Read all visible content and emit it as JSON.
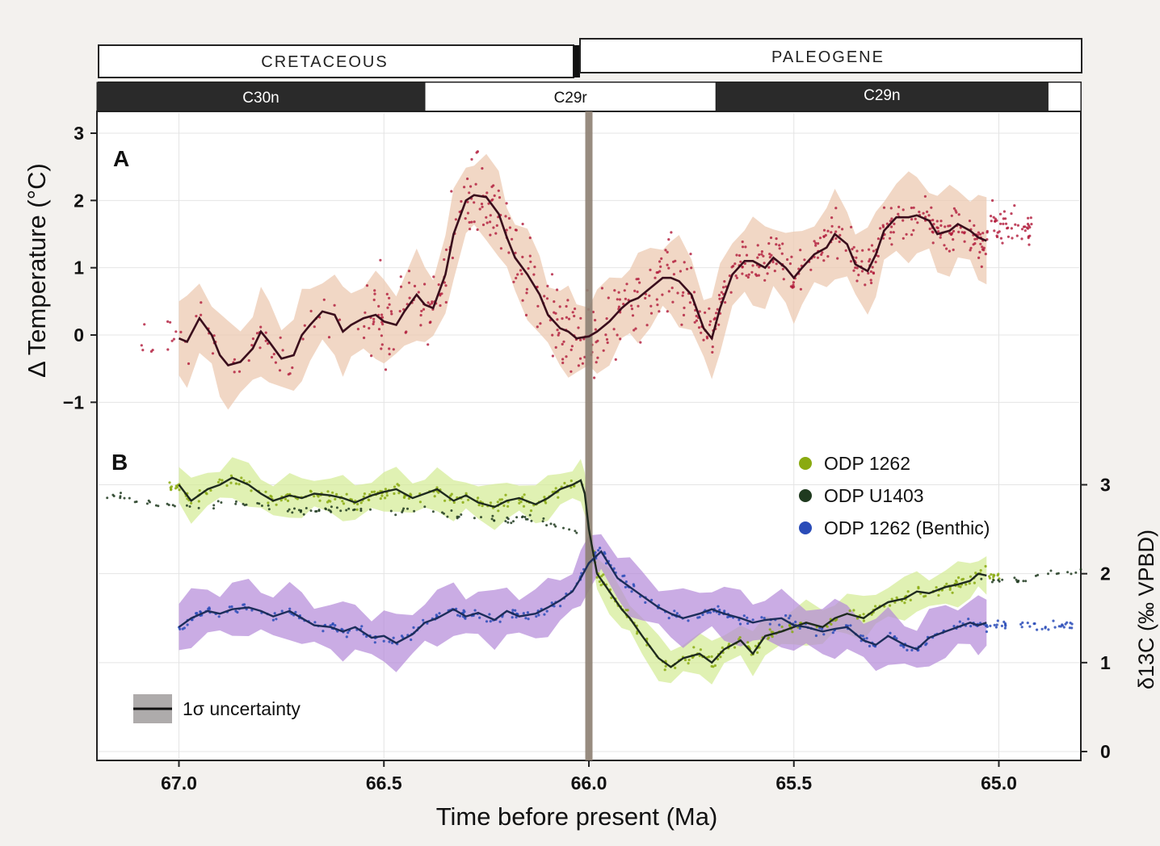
{
  "periods": [
    {
      "name": "CRETACEOUS",
      "from": 67.2,
      "to": 66.0
    },
    {
      "name": "PALEOGENE",
      "from": 66.0,
      "to": 64.8
    }
  ],
  "chrons": [
    {
      "name": "C30n",
      "from": 67.2,
      "to": 66.4,
      "polarity": "normal"
    },
    {
      "name": "C29r",
      "from": 66.4,
      "to": 65.69,
      "polarity": "reversed"
    },
    {
      "name": "C29n",
      "from": 65.69,
      "to": 64.88,
      "polarity": "normal"
    },
    {
      "name": "",
      "from": 64.88,
      "to": 64.8,
      "polarity": "reversed"
    }
  ],
  "colors": {
    "temp_line": "#3a0d1c",
    "temp_points": "#b01838",
    "temp_band": "#ecc9b2",
    "green_points": "#8aaa10",
    "green_band": "#d6ec9a",
    "dark_points": "#1f3a1f",
    "line_dark": "#1e2a1e",
    "benthic_points": "#2a4cb8",
    "benthic_band": "#b489d8",
    "benthic_line": "#1c2d5a",
    "boundary": "#8d7f72"
  },
  "legend": {
    "odp1262": "ODP 1262",
    "u1403": "ODP U1403",
    "benthic": "ODP 1262 (Benthic)",
    "uncertainty": "1σ uncertainty"
  },
  "chart_data": {
    "type": "line",
    "title": "",
    "xlabel": "Time before present (Ma)",
    "xlim": [
      67.2,
      64.8
    ],
    "xticks": [
      67.0,
      66.5,
      66.0,
      65.5,
      65.0
    ],
    "xtick_labels": [
      "67.0",
      "66.5",
      "66.0",
      "65.5",
      "65.0"
    ],
    "boundary_age": 66.0,
    "panels": [
      {
        "label": "A",
        "ylabel": "Δ Temperature (°C)",
        "ylim": [
          -1.5,
          3.0
        ],
        "yticks": [
          -1,
          0,
          1,
          2,
          3
        ],
        "ytick_labels": [
          "−1",
          "0",
          "1",
          "2",
          "3"
        ],
        "series": [
          {
            "name": "Δ Temperature",
            "band_halfwidth": 0.55,
            "x": [
              67.0,
              66.98,
              66.95,
              66.92,
              66.9,
              66.88,
              66.85,
              66.82,
              66.8,
              66.78,
              66.75,
              66.72,
              66.7,
              66.68,
              66.65,
              66.62,
              66.6,
              66.58,
              66.55,
              66.52,
              66.5,
              66.47,
              66.45,
              66.42,
              66.4,
              66.38,
              66.35,
              66.33,
              66.3,
              66.28,
              66.25,
              66.22,
              66.2,
              66.18,
              66.15,
              66.12,
              66.1,
              66.07,
              66.05,
              66.03,
              66.0,
              65.98,
              65.95,
              65.92,
              65.9,
              65.88,
              65.85,
              65.82,
              65.8,
              65.78,
              65.75,
              65.72,
              65.7,
              65.68,
              65.65,
              65.62,
              65.6,
              65.57,
              65.55,
              65.52,
              65.5,
              65.48,
              65.45,
              65.42,
              65.4,
              65.37,
              65.35,
              65.32,
              65.3,
              65.28,
              65.25,
              65.22,
              65.2,
              65.17,
              65.15,
              65.12,
              65.1,
              65.07,
              65.05,
              65.03
            ],
            "y": [
              -0.05,
              -0.1,
              0.25,
              0.0,
              -0.3,
              -0.45,
              -0.4,
              -0.2,
              0.05,
              -0.1,
              -0.35,
              -0.3,
              0.0,
              0.15,
              0.35,
              0.3,
              0.05,
              0.15,
              0.25,
              0.3,
              0.2,
              0.15,
              0.35,
              0.6,
              0.45,
              0.4,
              0.9,
              1.5,
              2.0,
              2.08,
              2.05,
              1.8,
              1.45,
              1.15,
              0.9,
              0.6,
              0.3,
              0.1,
              0.05,
              -0.05,
              -0.02,
              0.05,
              0.2,
              0.4,
              0.5,
              0.55,
              0.7,
              0.85,
              0.85,
              0.8,
              0.6,
              0.1,
              -0.05,
              0.4,
              0.9,
              1.1,
              1.1,
              1.0,
              1.15,
              1.0,
              0.85,
              1.0,
              1.2,
              1.3,
              1.5,
              1.35,
              1.05,
              0.95,
              1.2,
              1.55,
              1.75,
              1.75,
              1.78,
              1.7,
              1.5,
              1.55,
              1.65,
              1.55,
              1.45,
              1.4
            ]
          }
        ]
      },
      {
        "label": "B",
        "ylabel": "δ13C (‰ VPBD)",
        "ylim": [
          0,
          3.05
        ],
        "yticks": [
          0,
          1,
          2,
          3
        ],
        "ytick_labels": [
          "0",
          "1",
          "2",
          "3"
        ],
        "series": [
          {
            "name": "ODP 1262",
            "band_halfwidth": 0.2,
            "x": [
              67.0,
              66.97,
              66.93,
              66.9,
              66.87,
              66.83,
              66.8,
              66.77,
              66.73,
              66.7,
              66.67,
              66.63,
              66.6,
              66.57,
              66.53,
              66.5,
              66.47,
              66.43,
              66.4,
              66.37,
              66.33,
              66.3,
              66.27,
              66.23,
              66.2,
              66.17,
              66.13,
              66.1,
              66.07,
              66.04,
              66.02,
              66.01,
              66.0,
              65.98,
              65.95,
              65.92,
              65.9,
              65.87,
              65.83,
              65.8,
              65.77,
              65.73,
              65.7,
              65.67,
              65.63,
              65.6,
              65.57,
              65.53,
              65.5,
              65.47,
              65.43,
              65.4,
              65.37,
              65.33,
              65.3,
              65.27,
              65.23,
              65.2,
              65.17,
              65.13,
              65.1,
              65.07,
              65.05,
              65.03
            ],
            "y": [
              3.0,
              2.82,
              2.95,
              3.0,
              3.08,
              3.0,
              2.9,
              2.82,
              2.88,
              2.85,
              2.9,
              2.88,
              2.85,
              2.8,
              2.88,
              2.92,
              2.95,
              2.85,
              2.9,
              2.95,
              2.82,
              2.88,
              2.8,
              2.75,
              2.82,
              2.85,
              2.78,
              2.85,
              2.95,
              3.0,
              3.05,
              2.9,
              2.5,
              2.0,
              1.8,
              1.6,
              1.5,
              1.3,
              1.05,
              0.95,
              1.05,
              1.1,
              1.0,
              1.15,
              1.25,
              1.1,
              1.3,
              1.35,
              1.4,
              1.45,
              1.4,
              1.5,
              1.55,
              1.5,
              1.6,
              1.68,
              1.72,
              1.8,
              1.78,
              1.85,
              1.88,
              1.92,
              2.0,
              1.98
            ]
          },
          {
            "name": "ODP U1403",
            "x": [
              67.2,
              67.15,
              67.1,
              67.05,
              67.0,
              66.95,
              66.9,
              66.85,
              66.8,
              66.75,
              66.7,
              66.65,
              66.6,
              66.55,
              66.5,
              66.45,
              66.4,
              66.35,
              66.3,
              66.25,
              66.2,
              66.15,
              66.1,
              66.05,
              66.02,
              65.02,
              64.98,
              64.94,
              64.9,
              64.86,
              64.82
            ],
            "y": [
              2.9,
              2.87,
              2.8,
              2.78,
              2.77,
              2.75,
              2.78,
              2.8,
              2.76,
              2.72,
              2.7,
              2.72,
              2.74,
              2.7,
              2.68,
              2.7,
              2.72,
              2.68,
              2.64,
              2.62,
              2.6,
              2.62,
              2.55,
              2.5,
              2.45,
              1.92,
              1.95,
              1.92,
              1.98,
              2.0,
              2.02
            ]
          },
          {
            "name": "ODP 1262 (Benthic)",
            "band_halfwidth": 0.26,
            "x": [
              67.0,
              66.97,
              66.93,
              66.9,
              66.87,
              66.83,
              66.8,
              66.77,
              66.73,
              66.7,
              66.67,
              66.63,
              66.6,
              66.57,
              66.53,
              66.5,
              66.47,
              66.43,
              66.4,
              66.37,
              66.33,
              66.3,
              66.27,
              66.23,
              66.2,
              66.17,
              66.13,
              66.1,
              66.07,
              66.04,
              66.02,
              66.0,
              65.97,
              65.93,
              65.9,
              65.87,
              65.83,
              65.8,
              65.77,
              65.73,
              65.7,
              65.67,
              65.63,
              65.6,
              65.57,
              65.53,
              65.5,
              65.47,
              65.43,
              65.4,
              65.37,
              65.33,
              65.3,
              65.27,
              65.23,
              65.2,
              65.17,
              65.13,
              65.1,
              65.07,
              65.05,
              65.03
            ],
            "y": [
              1.4,
              1.5,
              1.58,
              1.55,
              1.6,
              1.62,
              1.58,
              1.52,
              1.58,
              1.5,
              1.42,
              1.4,
              1.35,
              1.4,
              1.28,
              1.3,
              1.22,
              1.32,
              1.45,
              1.5,
              1.6,
              1.52,
              1.56,
              1.48,
              1.58,
              1.52,
              1.55,
              1.62,
              1.7,
              1.8,
              1.95,
              2.12,
              2.25,
              1.95,
              1.85,
              1.75,
              1.62,
              1.55,
              1.5,
              1.55,
              1.6,
              1.55,
              1.5,
              1.45,
              1.48,
              1.5,
              1.42,
              1.4,
              1.35,
              1.38,
              1.4,
              1.25,
              1.2,
              1.3,
              1.2,
              1.15,
              1.28,
              1.35,
              1.4,
              1.45,
              1.42,
              1.45
            ]
          }
        ]
      }
    ]
  }
}
